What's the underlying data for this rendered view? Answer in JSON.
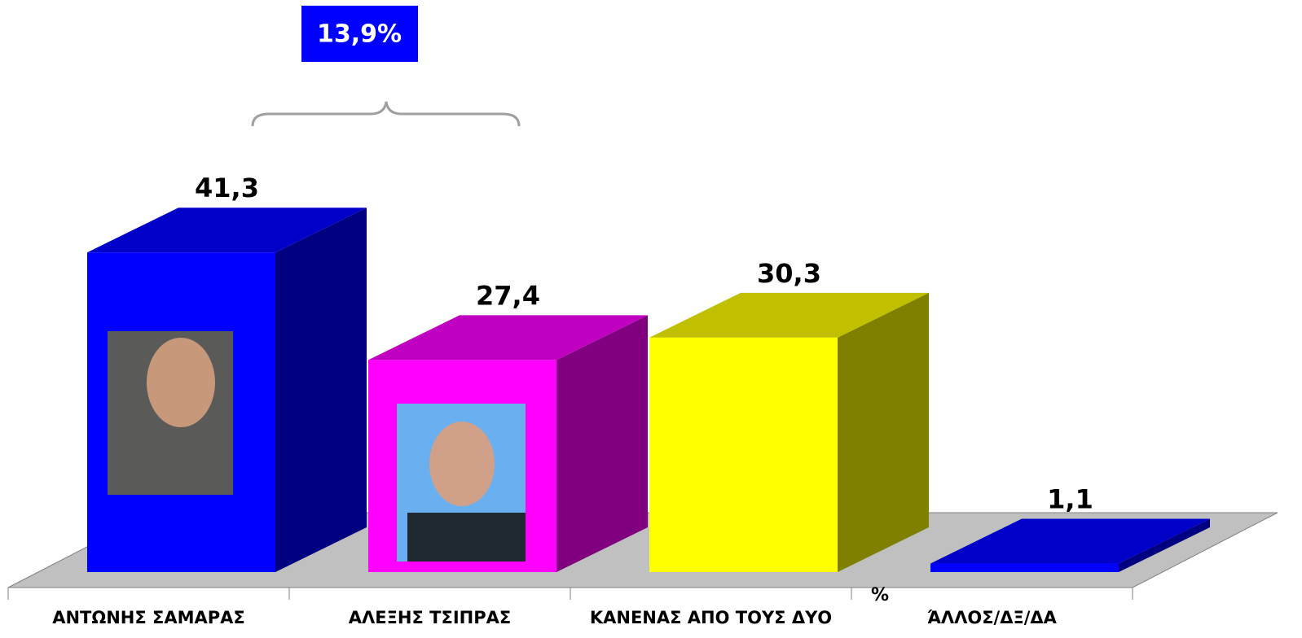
{
  "chart_data": {
    "type": "bar3d",
    "categories": [
      "ΑΝΤΩΝΗΣ ΣΑΜΑΡΑΣ",
      "ΑΛΕΞΗΣ ΤΣΙΠΡΑΣ",
      "ΚΑΝΕΝΑΣ ΑΠΟ ΤΟΥΣ ΔΥΟ",
      "ΆΛΛΟΣ/ΔΞ/ΔΑ"
    ],
    "values": [
      41.3,
      27.4,
      30.3,
      1.1
    ],
    "value_labels": [
      "41,3",
      "27,4",
      "30,3",
      "1,1"
    ],
    "colors": [
      "#0000ff",
      "#ff00ff",
      "#ffff00",
      "#0000ff"
    ],
    "side_colors": [
      "#000080",
      "#800080",
      "#808000",
      "#000080"
    ],
    "top_colors": [
      "#0000c8",
      "#c000c0",
      "#c0c000",
      "#0000c8"
    ],
    "ylim": [
      0,
      45
    ],
    "ylabel": "%",
    "annotation": "13,9%"
  }
}
